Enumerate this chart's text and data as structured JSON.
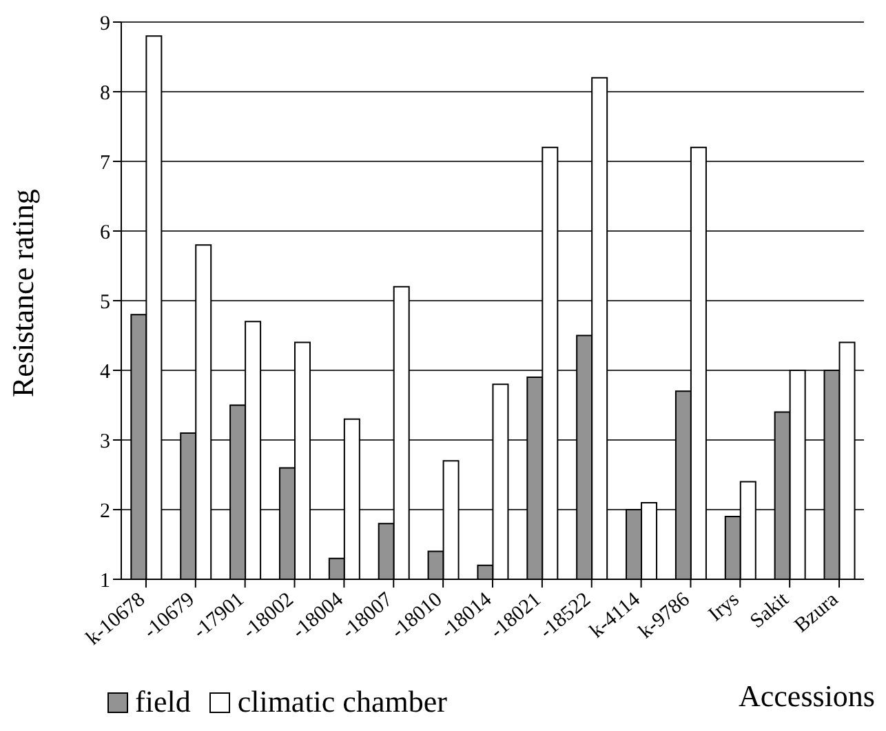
{
  "chart_data": {
    "type": "bar",
    "xlabel": "Accessions",
    "ylabel": "Resistance rating",
    "categories": [
      "k-10678",
      "-10679",
      "-17901",
      "-18002",
      "-18004",
      "-18007",
      "-18010",
      "-18014",
      "-18021",
      "-18522",
      "k-4114",
      "k-9786",
      "Irys",
      "Sakit",
      "Bzura"
    ],
    "series": [
      {
        "name": "field",
        "color": "#939393",
        "values": [
          4.8,
          3.1,
          3.5,
          2.6,
          1.3,
          1.8,
          1.4,
          1.2,
          3.9,
          4.5,
          2.0,
          3.7,
          1.9,
          3.4,
          4.0
        ]
      },
      {
        "name": "climatic chamber",
        "color": "#ffffff",
        "values": [
          8.8,
          5.8,
          4.7,
          4.4,
          3.3,
          5.2,
          2.7,
          3.8,
          7.2,
          8.2,
          2.1,
          7.2,
          2.4,
          4.0,
          4.4
        ]
      }
    ],
    "ylim": [
      1,
      9
    ],
    "yticks": [
      1,
      2,
      3,
      4,
      5,
      6,
      7,
      8,
      9
    ],
    "grid": "y",
    "legend": "bottom left"
  }
}
